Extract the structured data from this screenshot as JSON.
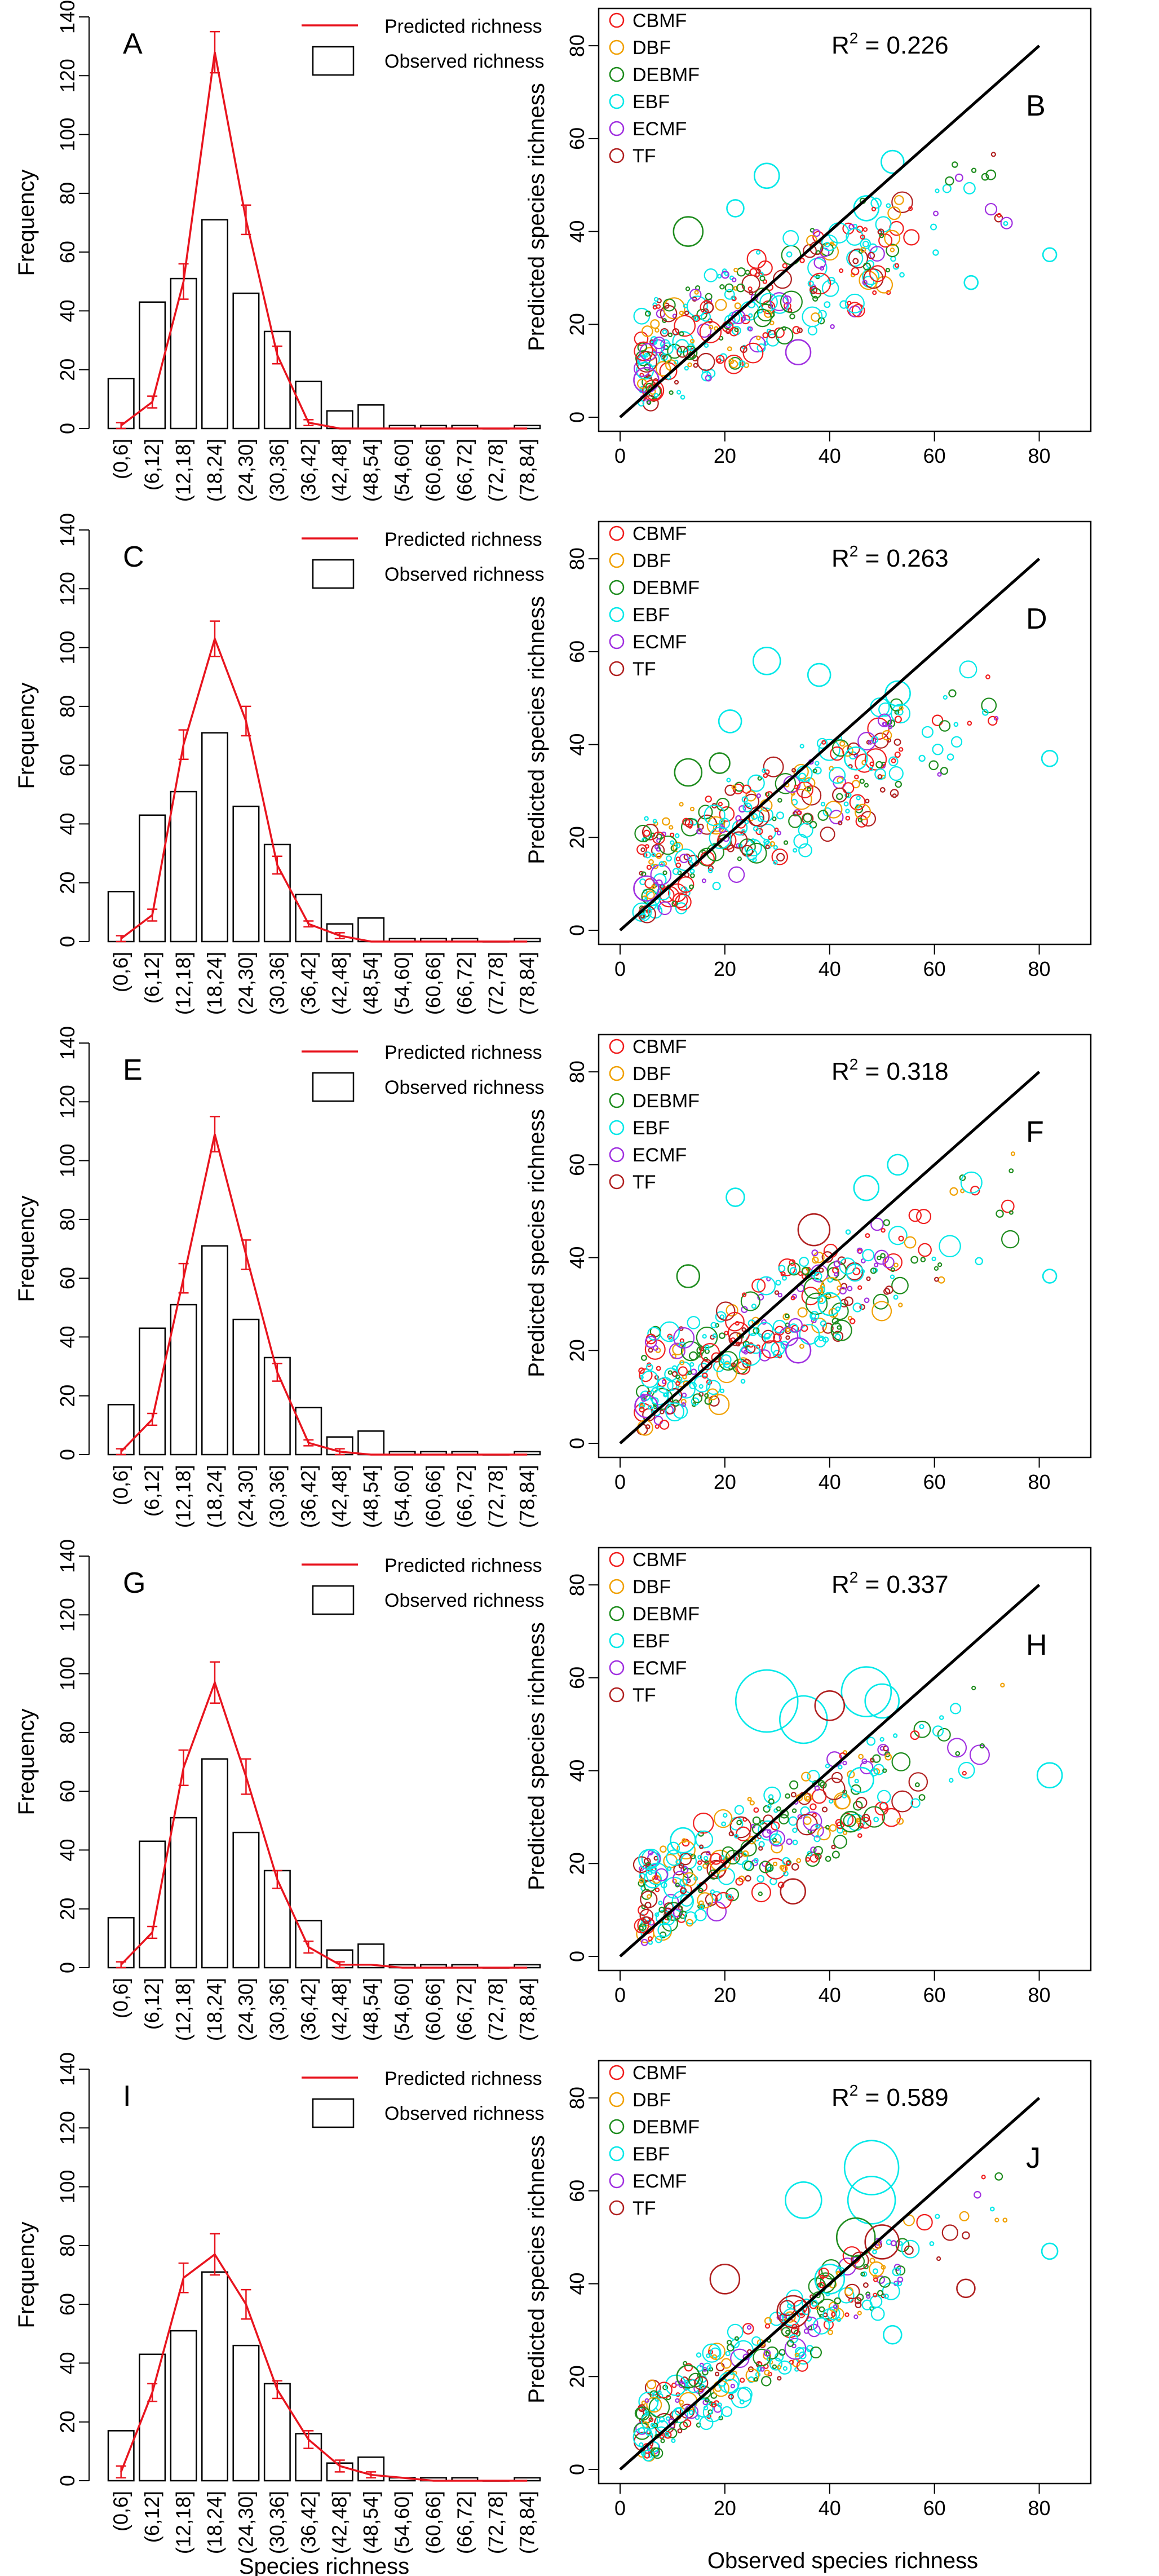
{
  "chart_data": [
    {
      "panel": "A",
      "type": "bar",
      "ylabel": "Frequency",
      "xlabel": "",
      "ylim": [
        0,
        140
      ],
      "yticks": [
        0,
        20,
        40,
        60,
        80,
        100,
        120,
        140
      ],
      "categories": [
        "(0,6]",
        "(6,12]",
        "(12,18]",
        "(18,24]",
        "(24,30]",
        "(30,36]",
        "(36,42]",
        "(42,48]",
        "(48,54]",
        "(54,60]",
        "(60,66]",
        "(66,72]",
        "(72,78]",
        "(78,84]"
      ],
      "series": [
        {
          "name": "Observed richness",
          "values": [
            17,
            43,
            51,
            71,
            46,
            33,
            16,
            6,
            8,
            1,
            1,
            1,
            0,
            1
          ]
        },
        {
          "name": "Predicted richness",
          "values": [
            1,
            9,
            50,
            128,
            71,
            25,
            2,
            0,
            0,
            0,
            0,
            0,
            0,
            0
          ],
          "error": [
            1,
            2,
            6,
            7,
            5,
            3,
            1,
            0,
            0,
            0,
            0,
            0,
            0,
            0
          ]
        }
      ],
      "legend": [
        "Predicted richness",
        "Observed richness"
      ]
    },
    {
      "panel": "B",
      "type": "scatter",
      "xlabel": "",
      "ylabel": "Predicted species richness",
      "xlim": [
        0,
        85
      ],
      "ylim": [
        0,
        85
      ],
      "xticks": [
        0,
        20,
        40,
        60,
        80
      ],
      "yticks": [
        0,
        20,
        40,
        60,
        80
      ],
      "r2_label": "R",
      "r2_value": " = 0.226",
      "seed": 11,
      "spread": 0.18,
      "line": {
        "x": [
          0,
          80
        ],
        "y": [
          0,
          80
        ]
      },
      "highlights": [
        {
          "x": 13,
          "y": 40,
          "g": 2,
          "r": 26
        },
        {
          "x": 28,
          "y": 52,
          "g": 3,
          "r": 22
        },
        {
          "x": 52,
          "y": 55,
          "g": 3,
          "r": 20
        },
        {
          "x": 82,
          "y": 35,
          "g": 3,
          "r": 12
        },
        {
          "x": 67,
          "y": 29,
          "g": 3,
          "r": 12
        },
        {
          "x": 34,
          "y": 14,
          "g": 4,
          "r": 22
        },
        {
          "x": 5,
          "y": 8,
          "g": 4,
          "r": 22
        },
        {
          "x": 47,
          "y": 45,
          "g": 3,
          "r": 22
        },
        {
          "x": 22,
          "y": 45,
          "g": 3,
          "r": 15
        }
      ],
      "legend": [
        "CBMF",
        "DBF",
        "DEBMF",
        "EBF",
        "ECMF",
        "TF"
      ]
    },
    {
      "panel": "C",
      "type": "bar",
      "ylabel": "Frequency",
      "xlabel": "",
      "ylim": [
        0,
        140
      ],
      "yticks": [
        0,
        20,
        40,
        60,
        80,
        100,
        120,
        140
      ],
      "categories": [
        "(0,6]",
        "(6,12]",
        "(12,18]",
        "(18,24]",
        "(24,30]",
        "(30,36]",
        "(36,42]",
        "(42,48]",
        "(48,54]",
        "(54,60]",
        "(60,66]",
        "(66,72]",
        "(72,78]",
        "(78,84]"
      ],
      "series": [
        {
          "name": "Observed richness",
          "values": [
            17,
            43,
            51,
            71,
            46,
            33,
            16,
            6,
            8,
            1,
            1,
            1,
            0,
            1
          ]
        },
        {
          "name": "Predicted richness",
          "values": [
            1,
            9,
            67,
            103,
            75,
            26,
            6,
            2,
            0,
            0,
            0,
            0,
            0,
            0
          ],
          "error": [
            1,
            2,
            5,
            6,
            5,
            3,
            1,
            1,
            0,
            0,
            0,
            0,
            0,
            0
          ]
        }
      ],
      "legend": [
        "Predicted richness",
        "Observed richness"
      ]
    },
    {
      "panel": "D",
      "type": "scatter",
      "xlabel": "",
      "ylabel": "Predicted species richness",
      "xlim": [
        0,
        85
      ],
      "ylim": [
        0,
        85
      ],
      "xticks": [
        0,
        20,
        40,
        60,
        80
      ],
      "yticks": [
        0,
        20,
        40,
        60,
        80
      ],
      "r2_label": "R",
      "r2_value": " = 0.263",
      "seed": 23,
      "spread": 0.17,
      "line": {
        "x": [
          0,
          80
        ],
        "y": [
          0,
          80
        ]
      },
      "highlights": [
        {
          "x": 28,
          "y": 58,
          "g": 3,
          "r": 24
        },
        {
          "x": 38,
          "y": 55,
          "g": 3,
          "r": 20
        },
        {
          "x": 53,
          "y": 51,
          "g": 3,
          "r": 22
        },
        {
          "x": 13,
          "y": 34,
          "g": 2,
          "r": 24
        },
        {
          "x": 21,
          "y": 45,
          "g": 3,
          "r": 20
        },
        {
          "x": 82,
          "y": 37,
          "g": 3,
          "r": 14
        },
        {
          "x": 5,
          "y": 9,
          "g": 4,
          "r": 22
        },
        {
          "x": 45,
          "y": 37,
          "g": 3,
          "r": 20
        },
        {
          "x": 19,
          "y": 36,
          "g": 2,
          "r": 18
        }
      ],
      "legend": [
        "CBMF",
        "DBF",
        "DEBMF",
        "EBF",
        "ECMF",
        "TF"
      ]
    },
    {
      "panel": "E",
      "type": "bar",
      "ylabel": "Frequency",
      "xlabel": "",
      "ylim": [
        0,
        140
      ],
      "yticks": [
        0,
        20,
        40,
        60,
        80,
        100,
        120,
        140
      ],
      "categories": [
        "(0,6]",
        "(6,12]",
        "(12,18]",
        "(18,24]",
        "(24,30]",
        "(30,36]",
        "(36,42]",
        "(42,48]",
        "(48,54]",
        "(54,60]",
        "(60,66]",
        "(66,72]",
        "(72,78]",
        "(78,84]"
      ],
      "series": [
        {
          "name": "Observed richness",
          "values": [
            17,
            43,
            51,
            71,
            46,
            33,
            16,
            6,
            8,
            1,
            1,
            1,
            0,
            1
          ]
        },
        {
          "name": "Predicted richness",
          "values": [
            1,
            12,
            60,
            109,
            68,
            28,
            4,
            1,
            0,
            0,
            0,
            0,
            0,
            0
          ],
          "error": [
            1,
            2,
            5,
            6,
            5,
            3,
            1,
            1,
            0,
            0,
            0,
            0,
            0,
            0
          ]
        }
      ],
      "legend": [
        "Predicted richness",
        "Observed richness"
      ]
    },
    {
      "panel": "F",
      "type": "scatter",
      "xlabel": "",
      "ylabel": "Predicted species richness",
      "xlim": [
        0,
        85
      ],
      "ylim": [
        0,
        85
      ],
      "xticks": [
        0,
        20,
        40,
        60,
        80
      ],
      "yticks": [
        0,
        20,
        40,
        60,
        80
      ],
      "r2_label": "R",
      "r2_value": " = 0.318",
      "seed": 37,
      "spread": 0.16,
      "line": {
        "x": [
          0,
          80
        ],
        "y": [
          0,
          80
        ]
      },
      "highlights": [
        {
          "x": 37,
          "y": 46,
          "g": 5,
          "r": 28
        },
        {
          "x": 47,
          "y": 55,
          "g": 3,
          "r": 22
        },
        {
          "x": 53,
          "y": 60,
          "g": 3,
          "r": 18
        },
        {
          "x": 13,
          "y": 36,
          "g": 2,
          "r": 20
        },
        {
          "x": 82,
          "y": 36,
          "g": 3,
          "r": 12
        },
        {
          "x": 34,
          "y": 20,
          "g": 4,
          "r": 22
        },
        {
          "x": 22,
          "y": 53,
          "g": 3,
          "r": 16
        },
        {
          "x": 5,
          "y": 8,
          "g": 4,
          "r": 20
        },
        {
          "x": 40,
          "y": 30,
          "g": 3,
          "r": 20
        }
      ],
      "legend": [
        "CBMF",
        "DBF",
        "DEBMF",
        "EBF",
        "ECMF",
        "TF"
      ]
    },
    {
      "panel": "G",
      "type": "bar",
      "ylabel": "Frequency",
      "xlabel": "",
      "ylim": [
        0,
        140
      ],
      "yticks": [
        0,
        20,
        40,
        60,
        80,
        100,
        120,
        140
      ],
      "categories": [
        "(0,6]",
        "(6,12]",
        "(12,18]",
        "(18,24]",
        "(24,30]",
        "(30,36]",
        "(36,42]",
        "(42,48]",
        "(48,54]",
        "(54,60]",
        "(60,66]",
        "(66,72]",
        "(72,78]",
        "(78,84]"
      ],
      "series": [
        {
          "name": "Observed richness",
          "values": [
            17,
            43,
            51,
            71,
            46,
            33,
            16,
            6,
            8,
            1,
            1,
            1,
            0,
            1
          ]
        },
        {
          "name": "Predicted richness",
          "values": [
            1,
            12,
            68,
            97,
            65,
            30,
            7,
            1,
            1,
            0,
            0,
            0,
            0,
            0
          ],
          "error": [
            1,
            2,
            6,
            7,
            6,
            3,
            2,
            1,
            0,
            0,
            0,
            0,
            0,
            0
          ]
        }
      ],
      "legend": [
        "Predicted richness",
        "Observed richness"
      ]
    },
    {
      "panel": "H",
      "type": "scatter",
      "xlabel": "",
      "ylabel": "Predicted species richness",
      "xlim": [
        0,
        85
      ],
      "ylim": [
        0,
        85
      ],
      "xticks": [
        0,
        20,
        40,
        60,
        80
      ],
      "yticks": [
        0,
        20,
        40,
        60,
        80
      ],
      "r2_label": "R",
      "r2_value": " = 0.337",
      "seed": 53,
      "spread": 0.16,
      "line": {
        "x": [
          0,
          80
        ],
        "y": [
          0,
          80
        ]
      },
      "highlights": [
        {
          "x": 28,
          "y": 55,
          "g": 3,
          "r": 55
        },
        {
          "x": 35,
          "y": 51,
          "g": 3,
          "r": 42
        },
        {
          "x": 47,
          "y": 57,
          "g": 3,
          "r": 44
        },
        {
          "x": 50,
          "y": 55,
          "g": 3,
          "r": 30
        },
        {
          "x": 40,
          "y": 54,
          "g": 5,
          "r": 26
        },
        {
          "x": 82,
          "y": 39,
          "g": 3,
          "r": 22
        },
        {
          "x": 46,
          "y": 38,
          "g": 3,
          "r": 22
        },
        {
          "x": 33,
          "y": 14,
          "g": 5,
          "r": 22
        },
        {
          "x": 44,
          "y": 29,
          "g": 2,
          "r": 18
        },
        {
          "x": 12,
          "y": 25,
          "g": 3,
          "r": 22
        }
      ],
      "legend": [
        "CBMF",
        "DBF",
        "DEBMF",
        "EBF",
        "ECMF",
        "TF"
      ]
    },
    {
      "panel": "I",
      "type": "bar",
      "ylabel": "Frequency",
      "xlabel": "Species richness",
      "ylim": [
        0,
        140
      ],
      "yticks": [
        0,
        20,
        40,
        60,
        80,
        100,
        120,
        140
      ],
      "categories": [
        "(0,6]",
        "(6,12]",
        "(12,18]",
        "(18,24]",
        "(24,30]",
        "(30,36]",
        "(36,42]",
        "(42,48]",
        "(48,54]",
        "(54,60]",
        "(60,66]",
        "(66,72]",
        "(72,78]",
        "(78,84]"
      ],
      "series": [
        {
          "name": "Observed richness",
          "values": [
            17,
            43,
            51,
            71,
            46,
            33,
            16,
            6,
            8,
            1,
            1,
            1,
            0,
            1
          ]
        },
        {
          "name": "Predicted richness",
          "values": [
            3,
            30,
            69,
            77,
            60,
            31,
            14,
            5,
            2,
            1,
            0,
            0,
            0,
            0
          ],
          "error": [
            2,
            3,
            5,
            7,
            5,
            3,
            3,
            2,
            1,
            0,
            0,
            0,
            0,
            0
          ]
        }
      ],
      "legend": [
        "Predicted richness",
        "Observed richness"
      ]
    },
    {
      "panel": "J",
      "type": "scatter",
      "xlabel": "Observed species richness",
      "ylabel": "Predicted species richness",
      "xlim": [
        0,
        85
      ],
      "ylim": [
        0,
        85
      ],
      "xticks": [
        0,
        20,
        40,
        60,
        80
      ],
      "yticks": [
        0,
        20,
        40,
        60,
        80
      ],
      "r2_label": "R",
      "r2_value": " = 0.589",
      "seed": 71,
      "spread": 0.1,
      "line": {
        "x": [
          0,
          80
        ],
        "y": [
          0,
          80
        ]
      },
      "highlights": [
        {
          "x": 48,
          "y": 65,
          "g": 3,
          "r": 48
        },
        {
          "x": 48,
          "y": 58,
          "g": 3,
          "r": 42
        },
        {
          "x": 35,
          "y": 58,
          "g": 3,
          "r": 32
        },
        {
          "x": 45,
          "y": 50,
          "g": 2,
          "r": 34
        },
        {
          "x": 50,
          "y": 49,
          "g": 5,
          "r": 30
        },
        {
          "x": 20,
          "y": 41,
          "g": 5,
          "r": 26
        },
        {
          "x": 66,
          "y": 39,
          "g": 5,
          "r": 16
        },
        {
          "x": 82,
          "y": 47,
          "g": 3,
          "r": 14
        },
        {
          "x": 33,
          "y": 34,
          "g": 5,
          "r": 28
        },
        {
          "x": 40,
          "y": 41,
          "g": 3,
          "r": 26
        },
        {
          "x": 52,
          "y": 29,
          "g": 3,
          "r": 16
        },
        {
          "x": 13,
          "y": 20,
          "g": 2,
          "r": 20
        }
      ],
      "legend": [
        "CBMF",
        "DBF",
        "DEBMF",
        "EBF",
        "ECMF",
        "TF"
      ]
    }
  ],
  "colors": {
    "pred_line": "#e8141e",
    "one_to_one": "#000000",
    "groups": [
      "#f01e1e",
      "#f0a000",
      "#1e8c1e",
      "#00e8e8",
      "#a030e0",
      "#b02020"
    ]
  }
}
